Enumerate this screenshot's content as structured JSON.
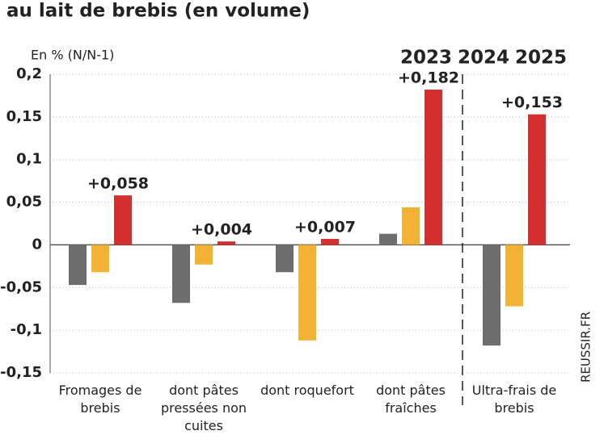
{
  "chart_data": {
    "type": "bar",
    "title": "au lait de brebis (en volume)",
    "y_label": "En % (N/N-1)",
    "source": "REUSSIR.FR",
    "categories": [
      "Fromages de brebis",
      "dont pâtes pressées non cuites",
      "dont roquefort",
      "dont pâtes fraîches",
      "Ultra-frais de brebis"
    ],
    "series": [
      {
        "name": "2023",
        "color": "#6d6d6d",
        "values": [
          -0.047,
          -0.068,
          -0.032,
          0.013,
          -0.118
        ]
      },
      {
        "name": "2024",
        "color": "#f2b233",
        "values": [
          -0.032,
          -0.023,
          -0.112,
          0.044,
          -0.072
        ]
      },
      {
        "name": "2025",
        "color": "#d42e2e",
        "values": [
          0.058,
          0.004,
          0.007,
          0.182,
          0.153
        ],
        "value_labels": [
          "+0,058",
          "+0,004",
          "+0,007",
          "+0,182",
          "+0,153"
        ]
      }
    ],
    "ylim": [
      -0.15,
      0.2
    ],
    "yticks": [
      {
        "value": -0.15,
        "label": "-0,15"
      },
      {
        "value": -0.1,
        "label": "-0,1"
      },
      {
        "value": -0.05,
        "label": "-0,05"
      },
      0,
      {
        "value": 0.05,
        "label": "0,05"
      },
      {
        "value": 0.1,
        "label": "0,1"
      },
      {
        "value": 0.15,
        "label": "0,15"
      },
      {
        "value": 0.2,
        "label": "0,2"
      }
    ],
    "grid": true
  }
}
